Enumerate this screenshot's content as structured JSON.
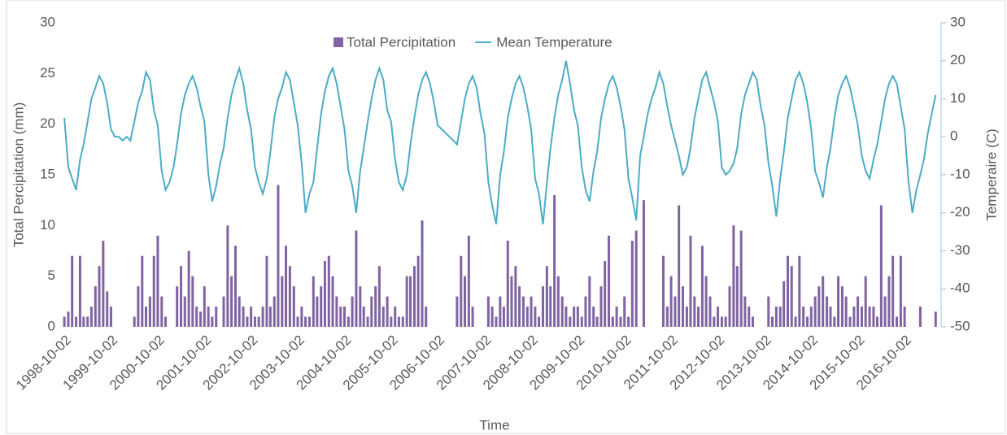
{
  "chart_data": {
    "type": "bar-line",
    "legend": "top",
    "x_label": "Time",
    "y_label": "Total Percipitation (mm)",
    "y2_label": "Temperaire (C)",
    "xlim": [
      "1998-09-25",
      "2017-07-02"
    ],
    "xticks": [
      "1998-10-02",
      "1999-10-02",
      "2000-10-02",
      "2001-10-02",
      "2002-10-02",
      "2003-10-02",
      "2004-10-02",
      "2005-10-02",
      "2006-10-02",
      "2007-10-02",
      "2008-10-02",
      "2009-10-02",
      "2010-10-02",
      "2011-10-02",
      "2012-10-02",
      "2013-10-02",
      "2014-10-02",
      "2015-10-02",
      "2016-10-02"
    ],
    "ylim": [
      0,
      30
    ],
    "yticks": [
      0,
      5,
      10,
      15,
      20,
      25,
      30
    ],
    "y2lim": [
      -50,
      30
    ],
    "y2ticks": [
      -50,
      -40,
      -30,
      -20,
      -10,
      0,
      10,
      20,
      30
    ],
    "x": [
      "1998-10-02",
      "1998-11-02",
      "1998-12-02",
      "1999-01-02",
      "1999-02-02",
      "1999-03-02",
      "1999-04-02",
      "1999-05-02",
      "1999-06-02",
      "1999-07-02",
      "1999-08-02",
      "1999-09-02",
      "1999-10-02",
      "1999-11-02",
      "1999-12-02",
      "2000-01-02",
      "2000-02-02",
      "2000-03-02",
      "2000-04-02",
      "2000-05-02",
      "2000-06-02",
      "2000-07-02",
      "2000-08-02",
      "2000-09-02",
      "2000-10-02",
      "2000-11-02",
      "2000-12-02",
      "2001-01-02",
      "2001-02-02",
      "2001-03-02",
      "2001-04-02",
      "2001-05-02",
      "2001-06-02",
      "2001-07-02",
      "2001-08-02",
      "2001-09-02",
      "2001-10-02",
      "2001-11-02",
      "2001-12-02",
      "2002-01-02",
      "2002-02-02",
      "2002-03-02",
      "2002-04-02",
      "2002-05-02",
      "2002-06-02",
      "2002-07-02",
      "2002-08-02",
      "2002-09-02",
      "2002-10-02",
      "2002-11-02",
      "2002-12-02",
      "2003-01-02",
      "2003-02-02",
      "2003-03-02",
      "2003-04-02",
      "2003-05-02",
      "2003-06-02",
      "2003-07-02",
      "2003-08-02",
      "2003-09-02",
      "2003-10-02",
      "2003-11-02",
      "2003-12-02",
      "2004-01-02",
      "2004-02-02",
      "2004-03-02",
      "2004-04-02",
      "2004-05-02",
      "2004-06-02",
      "2004-07-02",
      "2004-08-02",
      "2004-09-02",
      "2004-10-02",
      "2004-11-02",
      "2004-12-02",
      "2005-01-02",
      "2005-02-02",
      "2005-03-02",
      "2005-04-02",
      "2005-05-02",
      "2005-06-02",
      "2005-07-02",
      "2005-08-02",
      "2005-09-02",
      "2005-10-02",
      "2005-11-02",
      "2005-12-02",
      "2006-01-02",
      "2006-02-02",
      "2006-03-02",
      "2006-04-02",
      "2006-05-02",
      "2006-06-02",
      "2006-07-02",
      "2006-08-02",
      "2006-09-02",
      "2006-10-02",
      "2006-11-02",
      "2006-12-02",
      "2007-01-02",
      "2007-02-02",
      "2007-03-02",
      "2007-04-02",
      "2007-05-02",
      "2007-06-02",
      "2007-07-02",
      "2007-08-02",
      "2007-09-02",
      "2007-10-02",
      "2007-11-02",
      "2007-12-02",
      "2008-01-02",
      "2008-02-02",
      "2008-03-02",
      "2008-04-02",
      "2008-05-02",
      "2008-06-02",
      "2008-07-02",
      "2008-08-02",
      "2008-09-02",
      "2008-10-02",
      "2008-11-02",
      "2008-12-02",
      "2009-01-02",
      "2009-02-02",
      "2009-03-02",
      "2009-04-02",
      "2009-05-02",
      "2009-06-02",
      "2009-07-02",
      "2009-08-02",
      "2009-09-02",
      "2009-10-02",
      "2009-11-02",
      "2009-12-02",
      "2010-01-02",
      "2010-02-02",
      "2010-03-02",
      "2010-04-02",
      "2010-05-02",
      "2010-06-02",
      "2010-07-02",
      "2010-08-02",
      "2010-09-02",
      "2010-10-02",
      "2010-11-02",
      "2010-12-02",
      "2011-01-02",
      "2011-02-02",
      "2011-03-02",
      "2011-04-02",
      "2011-05-02",
      "2011-06-02",
      "2011-07-02",
      "2011-08-02",
      "2011-09-02",
      "2011-10-02",
      "2011-11-02",
      "2011-12-02",
      "2012-01-02",
      "2012-02-02",
      "2012-03-02",
      "2012-04-02",
      "2012-05-02",
      "2012-06-02",
      "2012-07-02",
      "2012-08-02",
      "2012-09-02",
      "2012-10-02",
      "2012-11-02",
      "2012-12-02",
      "2013-01-02",
      "2013-02-02",
      "2013-03-02",
      "2013-04-02",
      "2013-05-02",
      "2013-06-02",
      "2013-07-02",
      "2013-08-02",
      "2013-09-02",
      "2013-10-02",
      "2013-11-02",
      "2013-12-02",
      "2014-01-02",
      "2014-02-02",
      "2014-03-02",
      "2014-04-02",
      "2014-05-02",
      "2014-06-02",
      "2014-07-02",
      "2014-08-02",
      "2014-09-02",
      "2014-10-02",
      "2014-11-02",
      "2014-12-02",
      "2015-01-02",
      "2015-02-02",
      "2015-03-02",
      "2015-04-02",
      "2015-05-02",
      "2015-06-02",
      "2015-07-02",
      "2015-08-02",
      "2015-09-02",
      "2015-10-02",
      "2015-11-02",
      "2015-12-02",
      "2016-01-02",
      "2016-02-02",
      "2016-03-02",
      "2016-04-02",
      "2016-05-02",
      "2016-06-02",
      "2016-07-02",
      "2016-08-02",
      "2016-09-02",
      "2016-10-02",
      "2016-11-02",
      "2016-12-02",
      "2017-01-02",
      "2017-02-02",
      "2017-03-02",
      "2017-04-02",
      "2017-05-02",
      "2017-06-02"
    ],
    "series": [
      {
        "name": "Total Percipitation",
        "type": "bar",
        "color": "#8064a2",
        "values": [
          1,
          1.5,
          7,
          1,
          7,
          1,
          1,
          2,
          4,
          6,
          8.5,
          3.5,
          2,
          null,
          null,
          null,
          null,
          null,
          1,
          4,
          7,
          2,
          3,
          7,
          9,
          3,
          1,
          null,
          null,
          4,
          6,
          3,
          7.5,
          5,
          2,
          1.5,
          4,
          2,
          1,
          2,
          null,
          3,
          10,
          5,
          8,
          3,
          2,
          1,
          2,
          1,
          1,
          2,
          7,
          2,
          3,
          14,
          5,
          8,
          6,
          4,
          1,
          2,
          1,
          1,
          5,
          3,
          4,
          6.5,
          7,
          5,
          3,
          2,
          2,
          1,
          3,
          9.5,
          4,
          2,
          1,
          3,
          4,
          6,
          2,
          3,
          1,
          2,
          1,
          1,
          5,
          5,
          6,
          7,
          10.5,
          2,
          null,
          null,
          null,
          null,
          null,
          null,
          null,
          3,
          7,
          5,
          9,
          2,
          null,
          null,
          null,
          3,
          2,
          1,
          3,
          2,
          8.5,
          5,
          6,
          4,
          3,
          2,
          3,
          2,
          1,
          4,
          6,
          4,
          13,
          5,
          3,
          2,
          1,
          2,
          2,
          1,
          3,
          5,
          2,
          1,
          4,
          6.5,
          9,
          1,
          2,
          1,
          3,
          1,
          8.5,
          9.5,
          null,
          12.5,
          null,
          null,
          null,
          null,
          7,
          2,
          5,
          3,
          12,
          4,
          2,
          9,
          3,
          2,
          8,
          5,
          3,
          1,
          2,
          1,
          1,
          4,
          10,
          6,
          9.5,
          3,
          2,
          1,
          null,
          null,
          null,
          3,
          1,
          2,
          2,
          4.5,
          7,
          6,
          1,
          7,
          2,
          1,
          2,
          3,
          4,
          5,
          3,
          2,
          1,
          5,
          4,
          3,
          1,
          2,
          3,
          2,
          5,
          2,
          2,
          1,
          12,
          3,
          5,
          7,
          1,
          7,
          2,
          null,
          null,
          null,
          2,
          null,
          null,
          null,
          1.5
        ]
      },
      {
        "name": "Mean Temperature",
        "type": "line",
        "axis": "y2",
        "color": "#4bacc6",
        "values": [
          5,
          -8,
          -11,
          -14,
          -6,
          -2,
          4,
          10,
          13,
          16,
          14,
          9,
          2,
          0,
          0,
          -1,
          0,
          -1,
          4,
          9,
          12,
          17,
          15,
          7,
          3,
          -9,
          -14,
          -12,
          -8,
          -2,
          6,
          11,
          14,
          16,
          13,
          8,
          4,
          -10,
          -17,
          -13,
          -7,
          -3,
          5,
          11,
          15,
          18,
          14,
          7,
          2,
          -8,
          -12,
          -15,
          -11,
          -4,
          5,
          10,
          13,
          17,
          15,
          9,
          3,
          -7,
          -20,
          -15,
          -12,
          -3,
          6,
          12,
          16,
          18,
          14,
          8,
          2,
          -9,
          -13,
          -20,
          -9,
          -3,
          4,
          10,
          15,
          18,
          15,
          7,
          4,
          -6,
          -12,
          -14,
          -10,
          -2,
          5,
          11,
          15,
          17,
          14,
          9,
          3,
          2,
          1,
          0,
          -1,
          -2,
          4,
          10,
          14,
          16,
          13,
          6,
          1,
          -12,
          -18,
          -23,
          -10,
          -4,
          5,
          10,
          14,
          16,
          13,
          8,
          2,
          -11,
          -15,
          -23,
          -12,
          -3,
          5,
          11,
          15,
          20,
          14,
          7,
          3,
          -8,
          -14,
          -17,
          -9,
          -4,
          5,
          10,
          14,
          16,
          13,
          8,
          2,
          -11,
          -16,
          -22,
          -5,
          0,
          6,
          10,
          13,
          17,
          14,
          8,
          3,
          -1,
          -5,
          -10,
          -8,
          -3,
          5,
          10,
          15,
          17,
          13,
          9,
          4,
          -8,
          -10,
          -9,
          -7,
          -3,
          6,
          11,
          14,
          17,
          15,
          8,
          3,
          -7,
          -13,
          -21,
          -11,
          -4,
          5,
          10,
          15,
          17,
          14,
          9,
          2,
          -9,
          -12,
          -16,
          -8,
          -3,
          5,
          11,
          14,
          16,
          13,
          8,
          3,
          -5,
          -9,
          -11,
          -6,
          -2,
          4,
          10,
          14,
          16,
          14,
          8,
          2,
          -12,
          -20,
          -14,
          -10,
          -6,
          1,
          6,
          11
        ]
      }
    ]
  }
}
